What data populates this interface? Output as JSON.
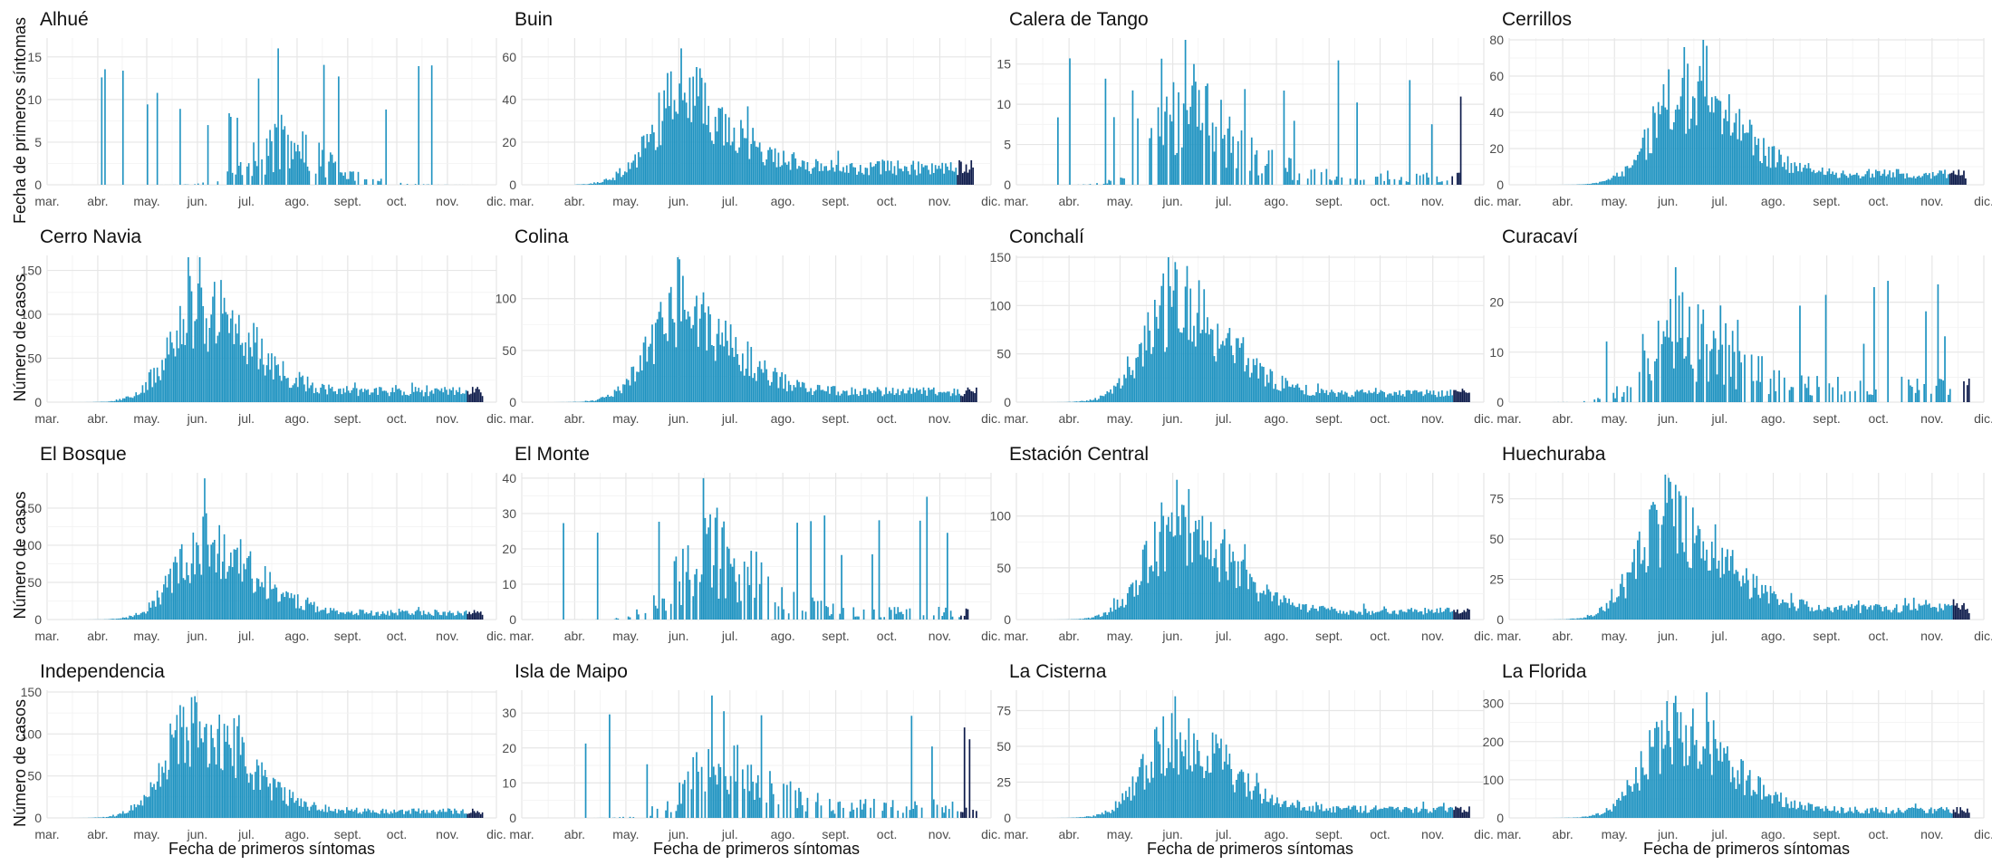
{
  "figure": {
    "x_axis_label": "Fecha de primeros síntomas",
    "y_axis_labels": [
      "Fecha de primeros síntomas",
      "Número de casos",
      "Número de casos",
      "Número de casos"
    ],
    "month_ticks": [
      "mar.",
      "abr.",
      "may.",
      "jun.",
      "jul.",
      "ago.",
      "sept.",
      "oct.",
      "nov.",
      "dic."
    ],
    "colors": {
      "bars": "#1f93c1",
      "recent_bars": "#0d1b4b",
      "grid": "#e6e6e6",
      "text": "#111111",
      "tick_text": "#4d4d4d"
    }
  },
  "chart_data": [
    {
      "type": "bar",
      "title": "Alhué",
      "x_range": [
        "2020-03-01",
        "2020-12-01"
      ],
      "ylim": [
        0,
        17
      ],
      "y_ticks": [
        0,
        5,
        10,
        15
      ],
      "profile": {
        "peak_date": "2020-07-20",
        "peak_value": 4,
        "baseline": 0,
        "start_date": "2020-03-25",
        "end_date": "2020-11-20",
        "max_value": 16,
        "sparse": true
      }
    },
    {
      "type": "bar",
      "title": "Buin",
      "x_range": [
        "2020-03-01",
        "2020-12-01"
      ],
      "ylim": [
        0,
        68
      ],
      "y_ticks": [
        0,
        20,
        40,
        60
      ],
      "profile": {
        "peak_date": "2020-06-02",
        "peak_value": 40,
        "baseline": 8,
        "start_date": "2020-04-01",
        "end_date": "2020-11-20",
        "max_value": 64,
        "sparse": false
      }
    },
    {
      "type": "bar",
      "title": "Calera de Tango",
      "x_range": [
        "2020-03-01",
        "2020-12-01"
      ],
      "ylim": [
        0,
        18
      ],
      "y_ticks": [
        0,
        5,
        10,
        15
      ],
      "profile": {
        "peak_date": "2020-06-08",
        "peak_value": 8,
        "baseline": 1,
        "start_date": "2020-03-25",
        "end_date": "2020-11-20",
        "max_value": 18,
        "sparse": true
      }
    },
    {
      "type": "bar",
      "title": "Cerrillos",
      "x_range": [
        "2020-03-01",
        "2020-12-01"
      ],
      "ylim": [
        0,
        80
      ],
      "y_ticks": [
        0,
        20,
        40,
        60,
        80
      ],
      "profile": {
        "peak_date": "2020-06-10",
        "peak_value": 50,
        "baseline": 6,
        "start_date": "2020-03-20",
        "end_date": "2020-11-20",
        "max_value": 76,
        "sparse": false
      }
    },
    {
      "type": "bar",
      "title": "Cerro Navia",
      "x_range": [
        "2020-03-01",
        "2020-12-01"
      ],
      "ylim": [
        0,
        165
      ],
      "y_ticks": [
        0,
        50,
        100,
        150
      ],
      "profile": {
        "peak_date": "2020-06-02",
        "peak_value": 105,
        "baseline": 12,
        "start_date": "2020-03-15",
        "end_date": "2020-11-22",
        "max_value": 165,
        "sparse": false
      }
    },
    {
      "type": "bar",
      "title": "Colina",
      "x_range": [
        "2020-03-01",
        "2020-12-01"
      ],
      "ylim": [
        0,
        140
      ],
      "y_ticks": [
        0,
        50,
        100
      ],
      "profile": {
        "peak_date": "2020-06-01",
        "peak_value": 85,
        "baseline": 10,
        "start_date": "2020-03-20",
        "end_date": "2020-11-22",
        "max_value": 138,
        "sparse": false
      }
    },
    {
      "type": "bar",
      "title": "Conchalí",
      "x_range": [
        "2020-03-01",
        "2020-12-01"
      ],
      "ylim": [
        0,
        150
      ],
      "y_ticks": [
        0,
        50,
        100,
        150
      ],
      "profile": {
        "peak_date": "2020-06-02",
        "peak_value": 100,
        "baseline": 9,
        "start_date": "2020-03-15",
        "end_date": "2020-11-22",
        "max_value": 145,
        "sparse": false
      }
    },
    {
      "type": "bar",
      "title": "Curacaví",
      "x_range": [
        "2020-03-01",
        "2020-12-01"
      ],
      "ylim": [
        0,
        29
      ],
      "y_ticks": [
        0,
        10,
        20
      ],
      "profile": {
        "peak_date": "2020-06-05",
        "peak_value": 12,
        "baseline": 3,
        "start_date": "2020-03-25",
        "end_date": "2020-11-22",
        "max_value": 27,
        "sparse": true
      }
    },
    {
      "type": "bar",
      "title": "El Bosque",
      "x_range": [
        "2020-03-01",
        "2020-12-01"
      ],
      "ylim": [
        0,
        195
      ],
      "y_ticks": [
        0,
        50,
        100,
        150
      ],
      "profile": {
        "peak_date": "2020-06-05",
        "peak_value": 100,
        "baseline": 9,
        "start_date": "2020-03-15",
        "end_date": "2020-11-22",
        "max_value": 190,
        "sparse": false
      }
    },
    {
      "type": "bar",
      "title": "El Monte",
      "x_range": [
        "2020-03-01",
        "2020-12-01"
      ],
      "ylim": [
        0,
        41
      ],
      "y_ticks": [
        0,
        10,
        20,
        30,
        40
      ],
      "profile": {
        "peak_date": "2020-06-15",
        "peak_value": 17,
        "baseline": 2,
        "start_date": "2020-03-25",
        "end_date": "2020-11-22",
        "max_value": 40,
        "sparse": true
      }
    },
    {
      "type": "bar",
      "title": "Estación Central",
      "x_range": [
        "2020-03-01",
        "2020-12-01"
      ],
      "ylim": [
        0,
        140
      ],
      "y_ticks": [
        0,
        50,
        100
      ],
      "profile": {
        "peak_date": "2020-06-03",
        "peak_value": 90,
        "baseline": 8,
        "start_date": "2020-03-15",
        "end_date": "2020-11-22",
        "max_value": 135,
        "sparse": false
      }
    },
    {
      "type": "bar",
      "title": "Huechuraba",
      "x_range": [
        "2020-03-01",
        "2020-12-01"
      ],
      "ylim": [
        0,
        90
      ],
      "y_ticks": [
        0,
        25,
        50,
        75
      ],
      "profile": {
        "peak_date": "2020-06-01",
        "peak_value": 60,
        "baseline": 7,
        "start_date": "2020-03-15",
        "end_date": "2020-11-22",
        "max_value": 88,
        "sparse": false
      }
    },
    {
      "type": "bar",
      "title": "Independencia",
      "x_range": [
        "2020-03-01",
        "2020-12-01"
      ],
      "ylim": [
        0,
        150
      ],
      "y_ticks": [
        0,
        50,
        100,
        150
      ],
      "profile": {
        "peak_date": "2020-05-30",
        "peak_value": 110,
        "baseline": 8,
        "start_date": "2020-03-15",
        "end_date": "2020-11-22",
        "max_value": 145,
        "sparse": false
      }
    },
    {
      "type": "bar",
      "title": "Isla de Maipo",
      "x_range": [
        "2020-03-01",
        "2020-12-01"
      ],
      "ylim": [
        0,
        36
      ],
      "y_ticks": [
        0,
        10,
        20,
        30
      ],
      "profile": {
        "peak_date": "2020-06-20",
        "peak_value": 13,
        "baseline": 3,
        "start_date": "2020-03-25",
        "end_date": "2020-11-22",
        "max_value": 35,
        "sparse": true
      }
    },
    {
      "type": "bar",
      "title": "La Cisterna",
      "x_range": [
        "2020-03-01",
        "2020-12-01"
      ],
      "ylim": [
        0,
        88
      ],
      "y_ticks": [
        0,
        25,
        50,
        75
      ],
      "profile": {
        "peak_date": "2020-06-02",
        "peak_value": 55,
        "baseline": 6,
        "start_date": "2020-03-15",
        "end_date": "2020-11-22",
        "max_value": 85,
        "sparse": false
      }
    },
    {
      "type": "bar",
      "title": "La Florida",
      "x_range": [
        "2020-03-01",
        "2020-12-01"
      ],
      "ylim": [
        0,
        330
      ],
      "y_ticks": [
        0,
        100,
        200,
        300
      ],
      "profile": {
        "peak_date": "2020-06-05",
        "peak_value": 230,
        "baseline": 20,
        "start_date": "2020-03-15",
        "end_date": "2020-11-22",
        "max_value": 320,
        "sparse": false
      }
    }
  ]
}
